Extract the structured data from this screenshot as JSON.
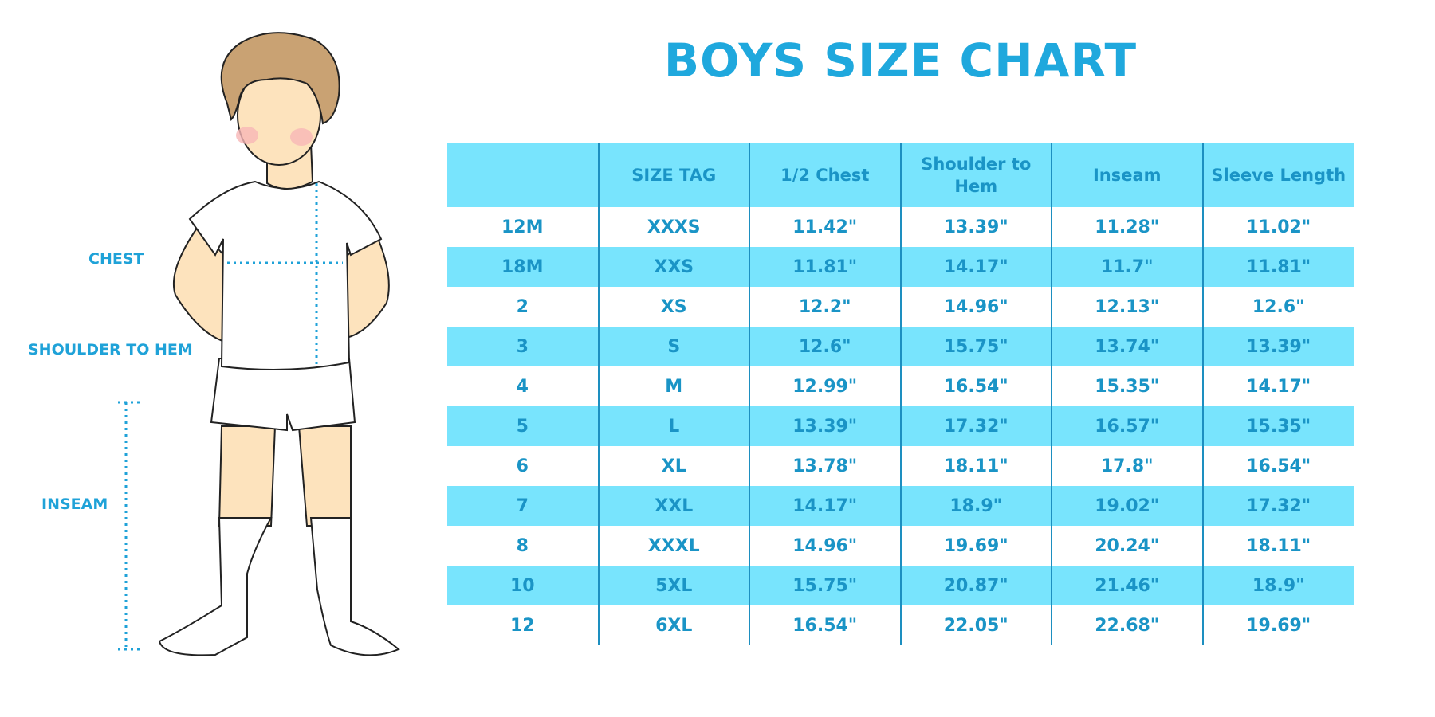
{
  "title": "BOYS SIZE CHART",
  "figure_labels": {
    "chest": "CHEST",
    "shoulder_to_hem": "SHOULDER TO HEM",
    "inseam": "INSEAM"
  },
  "colors": {
    "accent": "#1fa8dd",
    "header_bg": "#78e4fd",
    "text": "#1a94c6"
  },
  "table": {
    "headers": [
      "",
      "SIZE TAG",
      "1/2 Chest",
      "Shoulder to Hem",
      "Inseam",
      "Sleeve Length"
    ],
    "rows": [
      [
        "12M",
        "XXXS",
        "11.42\"",
        "13.39\"",
        "11.28\"",
        "11.02\""
      ],
      [
        "18M",
        "XXS",
        "11.81\"",
        "14.17\"",
        "11.7\"",
        "11.81\""
      ],
      [
        "2",
        "XS",
        "12.2\"",
        "14.96\"",
        "12.13\"",
        "12.6\""
      ],
      [
        "3",
        "S",
        "12.6\"",
        "15.75\"",
        "13.74\"",
        "13.39\""
      ],
      [
        "4",
        "M",
        "12.99\"",
        "16.54\"",
        "15.35\"",
        "14.17\""
      ],
      [
        "5",
        "L",
        "13.39\"",
        "17.32\"",
        "16.57\"",
        "15.35\""
      ],
      [
        "6",
        "XL",
        "13.78\"",
        "18.11\"",
        "17.8\"",
        "16.54\""
      ],
      [
        "7",
        "XXL",
        "14.17\"",
        "18.9\"",
        "19.02\"",
        "17.32\""
      ],
      [
        "8",
        "XXXL",
        "14.96\"",
        "19.69\"",
        "20.24\"",
        "18.11\""
      ],
      [
        "10",
        "5XL",
        "15.75\"",
        "20.87\"",
        "21.46\"",
        "18.9\""
      ],
      [
        "12",
        "6XL",
        "16.54\"",
        "22.05\"",
        "22.68\"",
        "19.69\""
      ]
    ]
  }
}
